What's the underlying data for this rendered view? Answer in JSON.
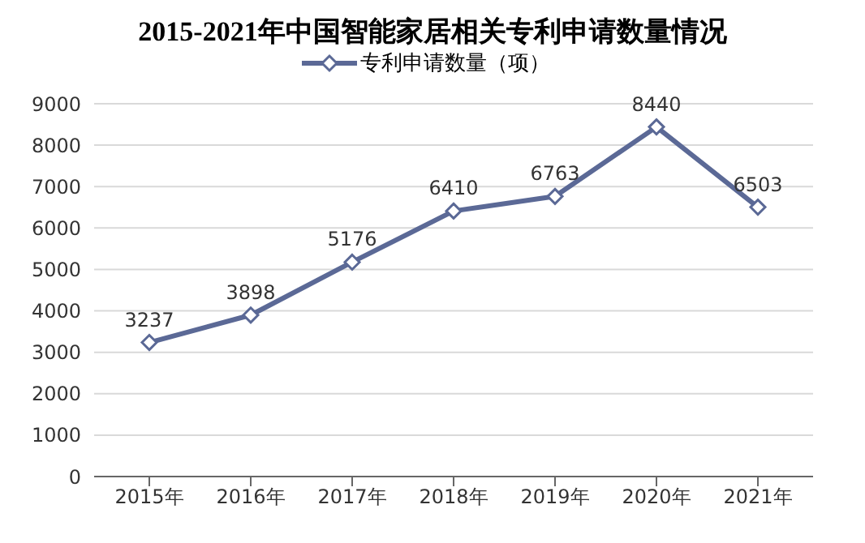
{
  "chart_data": {
    "type": "line",
    "title": "2015-2021年中国智能家居相关专利申请数量情况",
    "categories": [
      "2015年",
      "2016年",
      "2017年",
      "2018年",
      "2019年",
      "2020年",
      "2021年"
    ],
    "series": [
      {
        "name": "专利申请数量（项）",
        "color": "#5b6996",
        "values": [
          3237,
          3898,
          5176,
          6410,
          6763,
          8440,
          6503
        ]
      }
    ],
    "ylim": [
      0,
      9000
    ],
    "yticks": [
      0,
      1000,
      2000,
      3000,
      4000,
      5000,
      6000,
      7000,
      8000,
      9000
    ],
    "grid": "y",
    "legend": "top",
    "marker": "diamond",
    "line_style": "solid",
    "data_labels": true
  }
}
